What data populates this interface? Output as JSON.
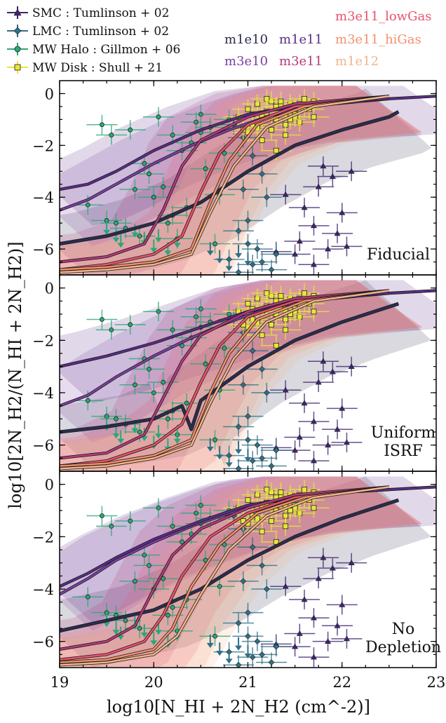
{
  "legend_left": [
    {
      "label": "SMC : Tumlinson + 02",
      "color": "#3e2470",
      "marker": "triangle"
    },
    {
      "label": "LMC : Tumlinson + 02",
      "color": "#2f6f86",
      "marker": "diamond"
    },
    {
      "label": "MW Halo : Gillmon + 06",
      "color": "#2aa877",
      "marker": "circle"
    },
    {
      "label": "MW Disk : Shull + 21",
      "color": "#e6e63a",
      "marker": "square"
    }
  ],
  "legend_right": [
    {
      "label": "m3e11_lowGas",
      "color": "#e9536b"
    },
    {
      "label": "m1e10",
      "color": "#2b2d4e"
    },
    {
      "label": "m1e11",
      "color": "#5a2d86"
    },
    {
      "label": "m3e11_hiGas",
      "color": "#f2906d"
    },
    {
      "label": "m3e10",
      "color": "#7b3fa1"
    },
    {
      "label": "m3e11",
      "color": "#b33a7c"
    },
    {
      "label": "m1e12",
      "color": "#f4b48a"
    }
  ],
  "xlabel": "log10[N_HI + 2N_H2 (cm^-2)]",
  "ylabel": "log10[2N_H2/(N_HI + 2N_H2)]",
  "chart_data": [
    {
      "type": "line",
      "panel_label": [
        "Fiducial"
      ],
      "xlim": [
        19,
        23
      ],
      "ylim": [
        -7,
        0.5
      ],
      "x_ticks": [
        19,
        20,
        21,
        22,
        23
      ],
      "y_ticks": [
        0,
        -2,
        -4,
        -6
      ],
      "series": [
        {
          "name": "m1e10",
          "x": [
            19,
            19.5,
            20,
            20.5,
            21,
            21.5,
            22,
            22.5,
            22.6
          ],
          "y": [
            -5.8,
            -5.5,
            -5.0,
            -4.2,
            -3.0,
            -2.0,
            -1.4,
            -0.9,
            -0.7
          ]
        },
        {
          "name": "m3e10",
          "x": [
            19,
            19.3,
            19.6,
            20,
            20.4,
            20.8,
            21.2,
            21.6,
            22.5
          ],
          "y": [
            -4.5,
            -4.1,
            -3.5,
            -2.7,
            -2.0,
            -1.4,
            -0.9,
            -0.5,
            -0.2
          ]
        },
        {
          "name": "m1e11",
          "x": [
            19,
            19.3,
            19.6,
            20,
            20.5,
            21,
            21.5,
            22,
            23
          ],
          "y": [
            -3.7,
            -3.5,
            -3.0,
            -2.2,
            -1.4,
            -0.8,
            -0.5,
            -0.3,
            -0.1
          ]
        },
        {
          "name": "m3e11",
          "x": [
            19,
            19.5,
            19.9,
            20.1,
            20.3,
            20.5,
            21,
            21.5,
            22.5
          ],
          "y": [
            -6.5,
            -6.3,
            -5.8,
            -4.5,
            -2.8,
            -1.8,
            -0.9,
            -0.4,
            -0.1
          ]
        },
        {
          "name": "m3e11_lowGas",
          "x": [
            19,
            19.5,
            20,
            20.3,
            20.5,
            20.7,
            21,
            21.5,
            22.5
          ],
          "y": [
            -6.8,
            -6.6,
            -6.2,
            -5.5,
            -3.8,
            -2.3,
            -1.2,
            -0.5,
            -0.1
          ]
        },
        {
          "name": "m3e11_hiGas",
          "x": [
            19,
            19.5,
            20,
            20.4,
            20.6,
            20.8,
            21.1,
            21.6,
            22.5
          ],
          "y": [
            -6.8,
            -6.7,
            -6.5,
            -6.0,
            -4.2,
            -2.6,
            -1.2,
            -0.5,
            -0.1
          ]
        },
        {
          "name": "m1e12",
          "x": [
            19,
            19.5,
            20,
            20.4,
            20.6,
            20.85,
            21.2,
            21.7,
            22.5
          ],
          "y": [
            -6.9,
            -6.8,
            -6.6,
            -6.2,
            -4.6,
            -2.8,
            -1.3,
            -0.5,
            -0.1
          ]
        }
      ]
    },
    {
      "type": "line",
      "panel_label": [
        "Uniform",
        "ISRF"
      ],
      "xlim": [
        19,
        23
      ],
      "ylim": [
        -7,
        0.5
      ],
      "x_ticks": [
        19,
        20,
        21,
        22,
        23
      ],
      "y_ticks": [
        0,
        -2,
        -4,
        -6
      ],
      "series": [
        {
          "name": "m1e10",
          "x": [
            19,
            19.5,
            20,
            20.3,
            20.4,
            20.5,
            21,
            21.5,
            22,
            22.6
          ],
          "y": [
            -5.5,
            -5.3,
            -5.0,
            -4.5,
            -5.4,
            -4.3,
            -3.0,
            -2.0,
            -1.3,
            -0.6
          ]
        },
        {
          "name": "m3e10",
          "x": [
            19,
            19.3,
            19.6,
            20,
            20.4,
            20.8,
            21.2,
            21.6,
            22.5
          ],
          "y": [
            -4.5,
            -4.1,
            -3.4,
            -2.6,
            -1.9,
            -1.3,
            -0.8,
            -0.5,
            -0.2
          ]
        },
        {
          "name": "m1e11",
          "x": [
            19,
            19.5,
            20,
            20.5,
            21,
            21.5,
            22,
            23
          ],
          "y": [
            -3.0,
            -2.6,
            -2.1,
            -1.5,
            -0.9,
            -0.5,
            -0.3,
            -0.1
          ]
        },
        {
          "name": "m3e11",
          "x": [
            19,
            19.5,
            19.9,
            20.1,
            20.3,
            20.5,
            21,
            21.5,
            22.5
          ],
          "y": [
            -6.5,
            -6.3,
            -5.6,
            -4.2,
            -2.8,
            -1.8,
            -0.9,
            -0.4,
            -0.1
          ]
        },
        {
          "name": "m3e11_lowGas",
          "x": [
            19,
            19.5,
            20,
            20.3,
            20.5,
            20.7,
            21,
            21.5,
            22.5
          ],
          "y": [
            -6.8,
            -6.6,
            -6.0,
            -5.2,
            -3.6,
            -2.2,
            -1.1,
            -0.5,
            -0.1
          ]
        },
        {
          "name": "m3e11_hiGas",
          "x": [
            19,
            19.5,
            20,
            20.4,
            20.6,
            20.8,
            21.1,
            21.6,
            22.5
          ],
          "y": [
            -6.8,
            -6.7,
            -6.4,
            -5.8,
            -4.0,
            -2.5,
            -1.2,
            -0.5,
            -0.1
          ]
        },
        {
          "name": "m1e12",
          "x": [
            19,
            19.5,
            20,
            20.4,
            20.6,
            20.85,
            21.2,
            21.7,
            22.5
          ],
          "y": [
            -6.9,
            -6.8,
            -6.5,
            -6.0,
            -4.4,
            -2.7,
            -1.3,
            -0.5,
            -0.1
          ]
        }
      ]
    },
    {
      "type": "line",
      "panel_label": [
        "No",
        "Depletion"
      ],
      "xlim": [
        19,
        23
      ],
      "ylim": [
        -7,
        0.5
      ],
      "x_ticks": [
        19,
        20,
        21,
        22,
        23
      ],
      "y_ticks": [
        0,
        -2,
        -4,
        -6
      ],
      "series": [
        {
          "name": "m1e10",
          "x": [
            19,
            19.5,
            20,
            20.5,
            21,
            21.5,
            22,
            22.6
          ],
          "y": [
            -5.6,
            -5.2,
            -4.8,
            -4.0,
            -2.9,
            -2.0,
            -1.3,
            -0.6
          ]
        },
        {
          "name": "m3e10",
          "x": [
            19,
            19.3,
            19.6,
            20,
            20.4,
            20.8,
            21.2,
            21.6,
            22.5
          ],
          "y": [
            -4.2,
            -3.6,
            -2.9,
            -2.2,
            -1.6,
            -1.1,
            -0.7,
            -0.4,
            -0.2
          ]
        },
        {
          "name": "m1e11",
          "x": [
            19,
            19.3,
            19.6,
            20,
            20.5,
            21,
            21.5,
            22,
            23
          ],
          "y": [
            -3.9,
            -3.4,
            -2.8,
            -2.1,
            -1.4,
            -0.8,
            -0.5,
            -0.3,
            -0.1
          ]
        },
        {
          "name": "m3e11",
          "x": [
            19,
            19.5,
            19.8,
            20.0,
            20.2,
            20.5,
            21,
            21.5,
            22.5
          ],
          "y": [
            -6.3,
            -6.0,
            -5.4,
            -4.0,
            -2.7,
            -1.7,
            -0.9,
            -0.4,
            -0.1
          ]
        },
        {
          "name": "m3e11_lowGas",
          "x": [
            19,
            19.5,
            19.9,
            20.1,
            20.3,
            20.6,
            21,
            21.5,
            22.5
          ],
          "y": [
            -6.7,
            -6.5,
            -6.0,
            -5.0,
            -3.5,
            -2.0,
            -1.1,
            -0.5,
            -0.1
          ]
        },
        {
          "name": "m3e11_hiGas",
          "x": [
            19,
            19.5,
            20,
            20.2,
            20.4,
            20.7,
            21.1,
            21.6,
            22.5
          ],
          "y": [
            -6.8,
            -6.7,
            -6.3,
            -5.5,
            -3.9,
            -2.3,
            -1.1,
            -0.5,
            -0.1
          ]
        },
        {
          "name": "m1e12",
          "x": [
            19,
            19.5,
            20,
            20.25,
            20.5,
            20.8,
            21.2,
            21.7,
            22.5
          ],
          "y": [
            -6.9,
            -6.8,
            -6.5,
            -5.8,
            -4.2,
            -2.5,
            -1.2,
            -0.5,
            -0.1
          ]
        }
      ]
    }
  ],
  "observations": {
    "SMC": {
      "x": [
        21.8,
        21.9,
        21.75,
        21.6,
        21.4,
        22.0,
        21.7,
        21.95,
        22.05,
        21.5,
        21.3,
        21.7,
        22.1,
        21.85,
        21.55
      ],
      "y": [
        -2.8,
        -3.2,
        -3.6,
        -4.4,
        -3.9,
        -4.6,
        -5.1,
        -5.4,
        -5.9,
        -6.2,
        -6.1,
        -6.6,
        -3.0,
        -6.0,
        -5.7
      ]
    },
    "LMC": {
      "x": [
        20.85,
        20.95,
        21.05,
        21.15,
        21.2,
        20.9,
        21.0,
        21.1,
        21.3,
        20.8,
        21.05,
        21.25,
        20.9,
        21.15,
        21.0,
        20.95
      ],
      "y": [
        -1.2,
        -1.7,
        -2.4,
        -3.1,
        -4.0,
        -5.3,
        -5.8,
        -6.0,
        -6.2,
        -6.4,
        -6.6,
        -6.8,
        -6.9,
        -6.5,
        -4.9,
        -3.7
      ]
    },
    "MW_Halo": {
      "x": [
        19.3,
        19.5,
        19.6,
        19.7,
        19.8,
        19.9,
        20.0,
        20.1,
        20.2,
        20.25,
        20.3,
        20.4,
        20.5,
        20.55,
        20.6,
        20.7,
        19.45,
        19.75,
        20.05,
        20.35,
        20.45,
        20.65,
        19.85,
        20.15,
        19.55,
        20.75,
        20.8,
        19.95,
        20.2,
        20.5
      ],
      "y": [
        -4.3,
        -4.9,
        -5.0,
        -5.2,
        -3.7,
        -2.7,
        -4.0,
        -3.6,
        -4.7,
        -5.6,
        -2.2,
        -1.9,
        -1.5,
        -2.9,
        -1.3,
        -3.9,
        -1.2,
        -1.4,
        -0.9,
        -4.4,
        -1.1,
        -5.8,
        -5.5,
        -5.0,
        -1.6,
        -2.3,
        -1.0,
        -3.1,
        -1.6,
        -0.8
      ]
    },
    "MW_Disk": {
      "x": [
        20.9,
        21.0,
        21.05,
        21.1,
        21.15,
        21.2,
        21.25,
        21.3,
        21.35,
        21.4,
        21.45,
        21.5,
        21.55,
        21.6,
        21.65,
        21.7,
        21.0,
        21.1,
        21.2,
        21.3,
        21.4,
        21.5,
        21.6,
        21.15,
        21.25,
        21.35,
        21.45,
        21.05,
        21.55,
        20.95,
        21.7,
        21.3,
        21.4,
        21.5
      ],
      "y": [
        -0.9,
        -0.6,
        -1.2,
        -0.4,
        -0.9,
        -0.7,
        -0.3,
        -1.0,
        -0.5,
        -0.8,
        -0.4,
        -0.7,
        -1.1,
        -0.2,
        -0.6,
        -0.3,
        -1.5,
        -1.3,
        -0.2,
        -0.5,
        -1.2,
        -0.9,
        -0.5,
        -1.8,
        -1.4,
        -0.3,
        -1.0,
        -0.8,
        -0.4,
        -1.4,
        -0.9,
        -2.2,
        -1.6,
        -0.6
      ]
    }
  },
  "upper_limits": {
    "MW_Halo": {
      "x": [
        19.5,
        19.6,
        19.65,
        19.8,
        19.9,
        20.0,
        20.05,
        20.15,
        20.25
      ],
      "y": [
        -5.1,
        -5.4,
        -5.6,
        -5.2,
        -5.5,
        -5.8,
        -5.4,
        -5.9,
        -5.6
      ]
    },
    "LMC": {
      "x": [
        20.6,
        20.7,
        20.8,
        20.9,
        21.0
      ],
      "y": [
        -5.9,
        -6.2,
        -6.5,
        -6.0,
        -6.3
      ]
    }
  }
}
